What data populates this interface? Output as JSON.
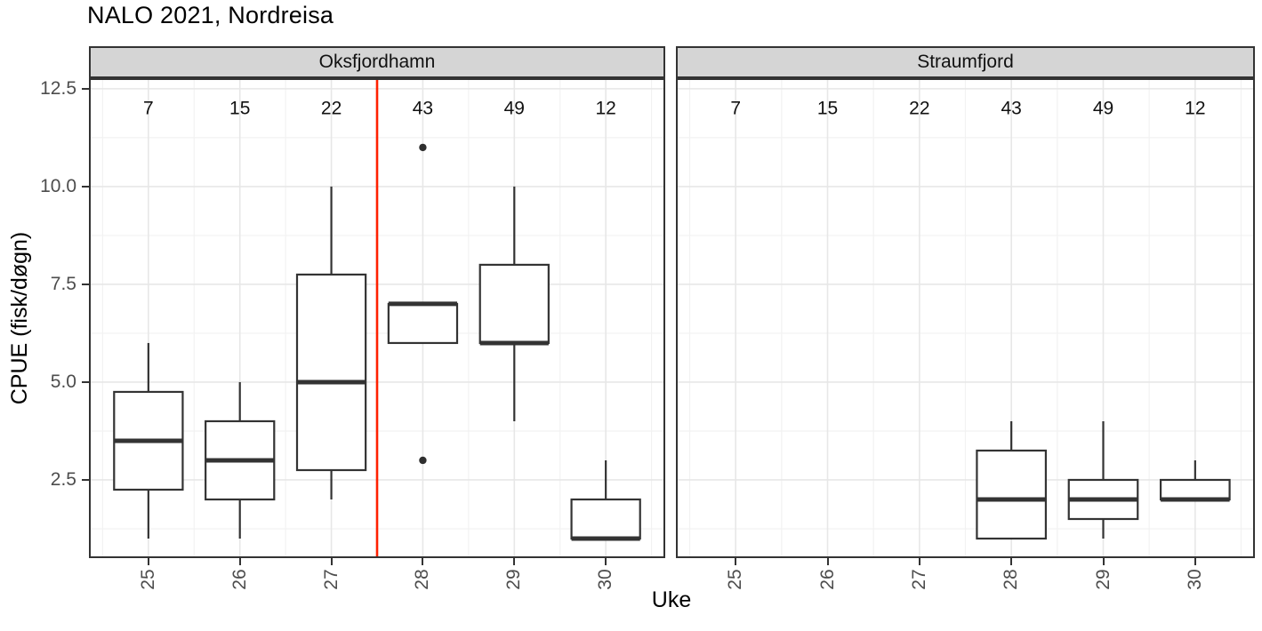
{
  "title": "NALO 2021, Nordreisa",
  "chart_data": {
    "type": "boxplot",
    "title": "NALO 2021, Nordreisa",
    "xlabel": "Uke",
    "ylabel": "CPUE (fisk/døgn)",
    "x_ticks": [
      {
        "value": 25,
        "label": "25"
      },
      {
        "value": 26,
        "label": "26"
      },
      {
        "value": 27,
        "label": "27"
      },
      {
        "value": 28,
        "label": "28"
      },
      {
        "value": 29,
        "label": "29"
      },
      {
        "value": 30,
        "label": "30"
      }
    ],
    "y_ticks": [
      {
        "value": 2.5,
        "label": "2.5"
      },
      {
        "value": 5.0,
        "label": "5.0"
      },
      {
        "value": 7.5,
        "label": "7.5"
      },
      {
        "value": 10.0,
        "label": "10.0"
      },
      {
        "value": 12.5,
        "label": "12.5"
      }
    ],
    "xlim": [
      24.35,
      30.65
    ],
    "ylim": [
      0.5,
      12.77
    ],
    "grid": true,
    "legend": "none",
    "box_width_units": 0.75,
    "counts_row_y": 12,
    "facets": [
      {
        "label": "Oksfjordhamn",
        "vline_x": 27.5,
        "counts": [
          {
            "week": 25,
            "n": "7"
          },
          {
            "week": 26,
            "n": "15"
          },
          {
            "week": 27,
            "n": "22"
          },
          {
            "week": 28,
            "n": "43"
          },
          {
            "week": 29,
            "n": "49"
          },
          {
            "week": 30,
            "n": "12"
          }
        ],
        "boxes": [
          {
            "week": 25,
            "min": 1.0,
            "q1": 2.25,
            "median": 3.5,
            "q3": 4.75,
            "max": 6.0,
            "outliers": []
          },
          {
            "week": 26,
            "min": 1.0,
            "q1": 2.0,
            "median": 3.0,
            "q3": 4.0,
            "max": 5.0,
            "outliers": []
          },
          {
            "week": 27,
            "min": 2.0,
            "q1": 2.75,
            "median": 5.0,
            "q3": 7.75,
            "max": 10.0,
            "outliers": []
          },
          {
            "week": 28,
            "min": 6.0,
            "q1": 6.0,
            "median": 7.0,
            "q3": 7.0,
            "max": 7.0,
            "outliers": [
              11.0,
              3.0
            ]
          },
          {
            "week": 29,
            "min": 4.0,
            "q1": 6.0,
            "median": 6.0,
            "q3": 8.0,
            "max": 10.0,
            "outliers": []
          },
          {
            "week": 30,
            "min": 1.0,
            "q1": 1.0,
            "median": 1.0,
            "q3": 2.0,
            "max": 3.0,
            "outliers": []
          }
        ]
      },
      {
        "label": "Straumfjord",
        "vline_x": null,
        "counts": [
          {
            "week": 25,
            "n": "7"
          },
          {
            "week": 26,
            "n": "15"
          },
          {
            "week": 27,
            "n": "22"
          },
          {
            "week": 28,
            "n": "43"
          },
          {
            "week": 29,
            "n": "49"
          },
          {
            "week": 30,
            "n": "12"
          }
        ],
        "boxes": [
          {
            "week": 28,
            "min": 1.0,
            "q1": 1.0,
            "median": 2.0,
            "q3": 3.25,
            "max": 4.0,
            "outliers": []
          },
          {
            "week": 29,
            "min": 1.0,
            "q1": 1.5,
            "median": 2.0,
            "q3": 2.5,
            "max": 4.0,
            "outliers": []
          },
          {
            "week": 30,
            "min": 2.0,
            "q1": 2.0,
            "median": 2.0,
            "q3": 2.5,
            "max": 3.0,
            "outliers": []
          }
        ]
      }
    ],
    "colors": {
      "box_stroke": "#333333",
      "box_fill": "#ffffff",
      "outlier": "#2e2e2e",
      "ref_line": "#ff2000",
      "strip_fill": "#d5d5d5",
      "strip_border": "#333333",
      "panel_border": "#333333",
      "grid_major": "#e7e7e7",
      "grid_minor": "#f2f2f2",
      "axis_text": "#4d4d4d",
      "text": "#111111"
    }
  }
}
